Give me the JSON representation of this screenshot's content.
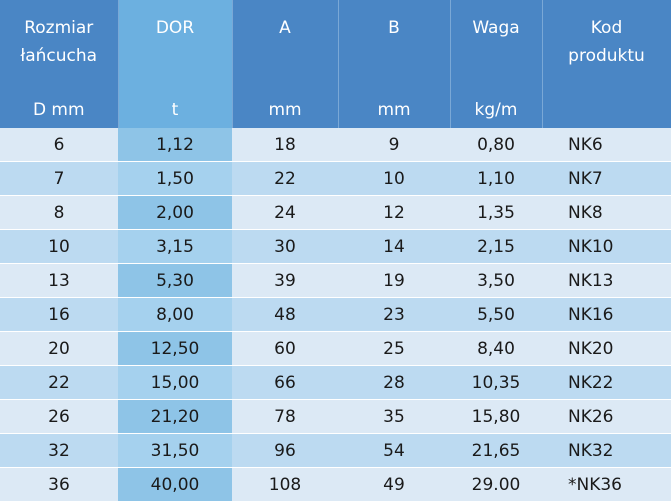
{
  "table": {
    "columns": [
      {
        "title": [
          "Rozmiar",
          "łańcucha"
        ],
        "unit": "D mm"
      },
      {
        "title": [
          "DOR"
        ],
        "unit": "t"
      },
      {
        "title": [
          "A"
        ],
        "unit": "mm"
      },
      {
        "title": [
          "B"
        ],
        "unit": "mm"
      },
      {
        "title": [
          "Waga"
        ],
        "unit": "kg/m"
      },
      {
        "title": [
          "Kod",
          "produktu"
        ]
      }
    ],
    "rows": [
      [
        "6",
        "1,12",
        "18",
        "9",
        "0,80",
        "NK6"
      ],
      [
        "7",
        "1,50",
        "22",
        "10",
        "1,10",
        "NK7"
      ],
      [
        "8",
        "2,00",
        "24",
        "12",
        "1,35",
        "NK8"
      ],
      [
        "10",
        "3,15",
        "30",
        "14",
        "2,15",
        "NK10"
      ],
      [
        "13",
        "5,30",
        "39",
        "19",
        "3,50",
        "NK13"
      ],
      [
        "16",
        "8,00",
        "48",
        "23",
        "5,50",
        "NK16"
      ],
      [
        "20",
        "12,50",
        "60",
        "25",
        "8,40",
        "NK20"
      ],
      [
        "22",
        "15,00",
        "66",
        "28",
        "10,35",
        "NK22"
      ],
      [
        "26",
        "21,20",
        "78",
        "35",
        "15,80",
        "NK26"
      ],
      [
        "32",
        "31,50",
        "96",
        "54",
        "21,65",
        "NK32"
      ],
      [
        "36",
        "40,00",
        "108",
        "49",
        "29.00",
        "*NK36"
      ]
    ]
  }
}
